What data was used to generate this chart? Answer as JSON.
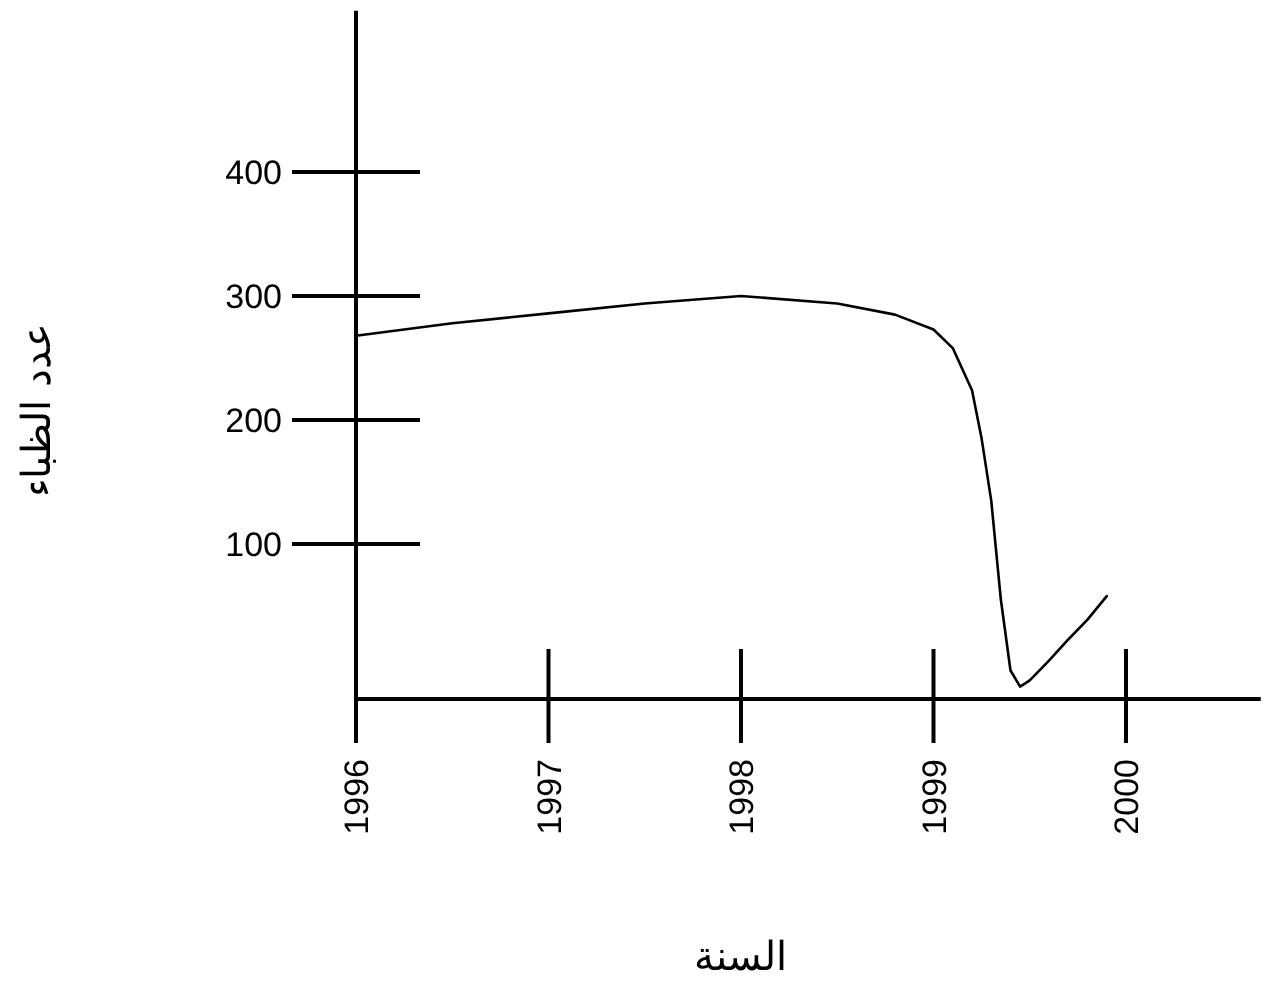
{
  "chart_data": {
    "type": "line",
    "xlabel": "السنة",
    "ylabel": "عدد الظباء",
    "color": "#000000",
    "x": [
      1996,
      1996.5,
      1997,
      1997.5,
      1998,
      1998.5,
      1998.8,
      1999,
      1999.1,
      1999.2,
      1999.25,
      1999.3,
      1999.35,
      1999.4,
      1999.45,
      1999.5,
      1999.6,
      1999.7,
      1999.8,
      1999.9
    ],
    "values": [
      268,
      278,
      286,
      294,
      300,
      294,
      285,
      273,
      258,
      224,
      185,
      135,
      55,
      -2,
      -15,
      -10,
      6,
      23,
      39,
      58
    ],
    "xlim": [
      1996,
      2000.7
    ],
    "ylim": [
      -25,
      530
    ],
    "xticks": [
      1996,
      1997,
      1998,
      1999,
      2000
    ],
    "yticks": [
      100,
      200,
      300,
      400
    ]
  }
}
